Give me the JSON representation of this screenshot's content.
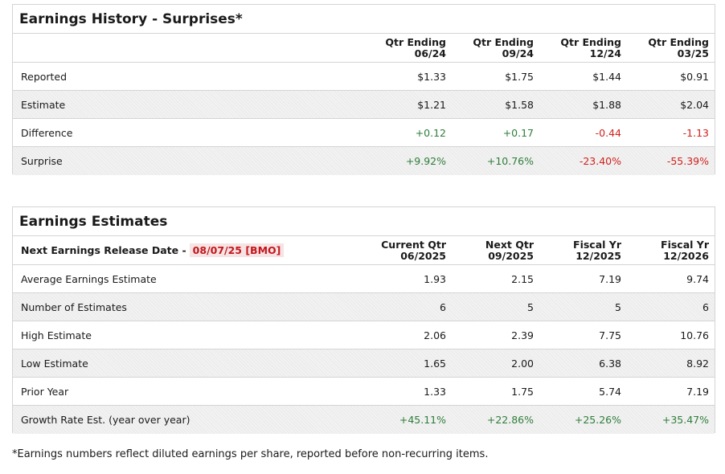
{
  "history": {
    "title": "Earnings History - Surprises*",
    "columns": [
      {
        "line1": "Qtr Ending",
        "line2": "06/24"
      },
      {
        "line1": "Qtr Ending",
        "line2": "09/24"
      },
      {
        "line1": "Qtr Ending",
        "line2": "12/24"
      },
      {
        "line1": "Qtr Ending",
        "line2": "03/25"
      }
    ],
    "rows": [
      {
        "label": "Reported",
        "values": [
          "$1.33",
          "$1.75",
          "$1.44",
          "$0.91"
        ]
      },
      {
        "label": "Estimate",
        "values": [
          "$1.21",
          "$1.58",
          "$1.88",
          "$2.04"
        ]
      },
      {
        "label": "Difference",
        "values": [
          "+0.12",
          "+0.17",
          "-0.44",
          "-1.13"
        ]
      },
      {
        "label": "Surprise",
        "values": [
          "+9.92%",
          "+10.76%",
          "-23.40%",
          "-55.39%"
        ]
      }
    ]
  },
  "estimates": {
    "title": "Earnings Estimates",
    "release_label": "Next Earnings Release Date -",
    "release_date": "08/07/25 [BMO]",
    "columns": [
      {
        "line1": "Current Qtr",
        "line2": "06/2025"
      },
      {
        "line1": "Next Qtr",
        "line2": "09/2025"
      },
      {
        "line1": "Fiscal Yr",
        "line2": "12/2025"
      },
      {
        "line1": "Fiscal Yr",
        "line2": "12/2026"
      }
    ],
    "rows": [
      {
        "label": "Average Earnings Estimate",
        "values": [
          "1.93",
          "2.15",
          "7.19",
          "9.74"
        ]
      },
      {
        "label": "Number of Estimates",
        "values": [
          "6",
          "5",
          "5",
          "6"
        ]
      },
      {
        "label": "High Estimate",
        "values": [
          "2.06",
          "2.39",
          "7.75",
          "10.76"
        ]
      },
      {
        "label": "Low Estimate",
        "values": [
          "1.65",
          "2.00",
          "6.38",
          "8.92"
        ]
      },
      {
        "label": "Prior Year",
        "values": [
          "1.33",
          "1.75",
          "5.74",
          "7.19"
        ]
      },
      {
        "label": "Growth Rate Est. (year over year)",
        "values": [
          "+45.11%",
          "+22.86%",
          "+25.26%",
          "+35.47%"
        ]
      }
    ]
  },
  "footnote": "*Earnings numbers reflect diluted earnings per share, reported before non-recurring items.",
  "colors": {
    "positive": "#2e7d3a",
    "negative": "#d0211c",
    "release_date_bg": "#f6e3e3"
  }
}
